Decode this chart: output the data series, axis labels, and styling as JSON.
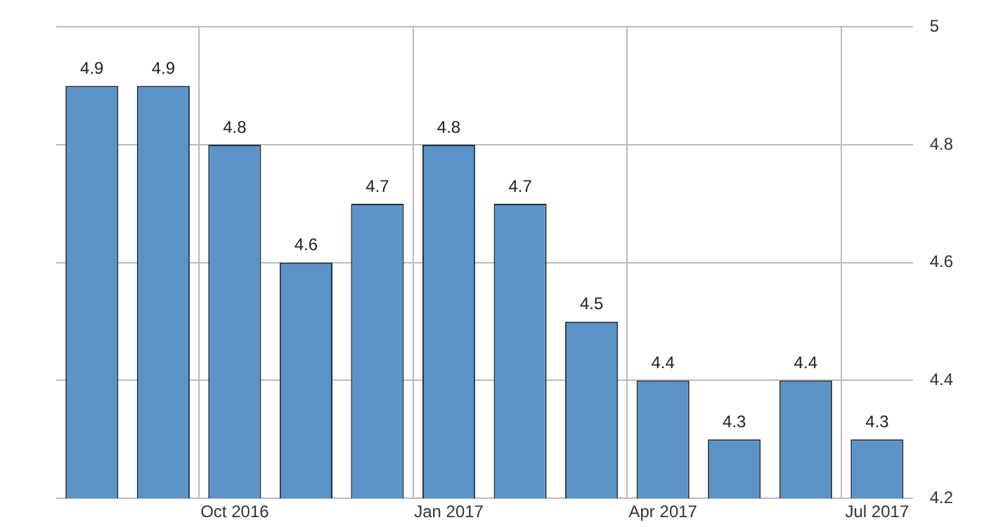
{
  "chart_data": {
    "type": "bar",
    "categories": [
      null,
      null,
      "Oct 2016",
      null,
      null,
      "Jan 2017",
      null,
      null,
      "Apr 2017",
      null,
      null,
      "Jul 2017"
    ],
    "values": [
      4.9,
      4.9,
      4.8,
      4.6,
      4.7,
      4.8,
      4.7,
      4.5,
      4.4,
      4.3,
      4.4,
      4.3
    ],
    "color": "#5b93c7",
    "ylim": [
      4.2,
      5
    ],
    "yticks": [
      4.2,
      4.4,
      4.6,
      4.8,
      5
    ],
    "grid": true,
    "data_labels": true
  }
}
